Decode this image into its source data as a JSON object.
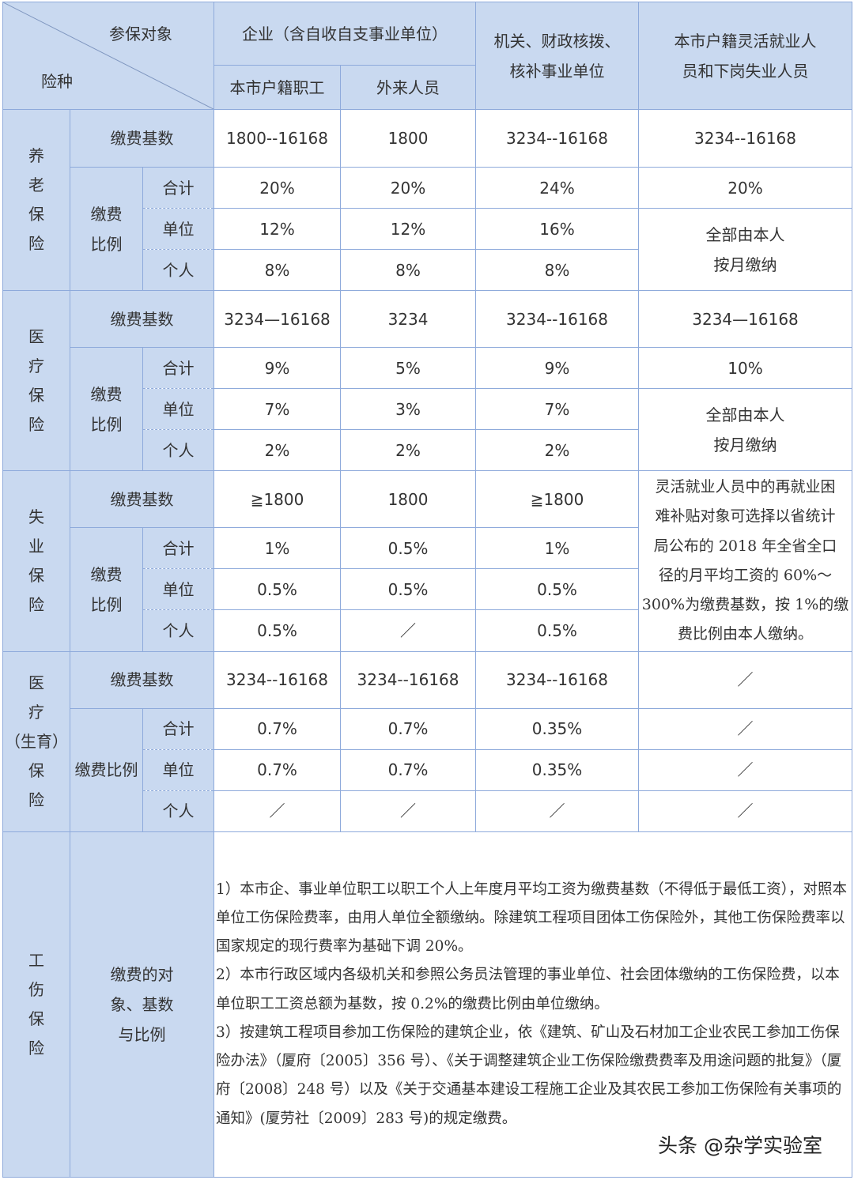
{
  "header": {
    "corner_top": "参保对象",
    "corner_bottom": "险种",
    "enterprise": "企业（含自收自支事业单位）",
    "local_staff": "本市户籍职工",
    "migrant": "外来人员",
    "government": "机关、财政核拨、\n核补事业单位",
    "flexible": "本市户籍灵活就业人\n员和下岗失业人员"
  },
  "labels": {
    "base": "缴费基数",
    "ratio": "缴费\n比例",
    "ratio_inline": "缴费比例",
    "total": "合计",
    "employer": "单位",
    "personal": "个人",
    "slash": "／"
  },
  "pension": {
    "name": "养\n老\n保\n险",
    "base": [
      "1800--16168",
      "1800",
      "3234--16168",
      "3234--16168"
    ],
    "total": [
      "20%",
      "20%",
      "24%",
      "20%"
    ],
    "employer": [
      "12%",
      "12%",
      "16%"
    ],
    "personal": [
      "8%",
      "8%",
      "8%"
    ],
    "flex_note": "全部由本人\n按月缴纳"
  },
  "medical": {
    "name": "医\n疗\n保\n险",
    "base": [
      "3234—16168",
      "3234",
      "3234--16168",
      "3234—16168"
    ],
    "total": [
      "9%",
      "5%",
      "9%",
      "10%"
    ],
    "employer": [
      "7%",
      "3%",
      "7%"
    ],
    "personal": [
      "2%",
      "2%",
      "2%"
    ],
    "flex_note": "全部由本人\n按月缴纳"
  },
  "unemployment": {
    "name": "失\n业\n保\n险",
    "base": [
      "≧1800",
      "1800",
      "≧1800"
    ],
    "total": [
      "1%",
      "0.5%",
      "1%"
    ],
    "employer": [
      "0.5%",
      "0.5%",
      "0.5%"
    ],
    "personal": [
      "0.5%",
      "／",
      "0.5%"
    ],
    "flex_note": "灵活就业人员中的再就业困\n难补贴对象可选择以省统计\n局公布的 2018 年全省全口\n径的月平均工资的 60%～\n300%为缴费基数，按 1%的缴\n费比例由本人缴纳。"
  },
  "maternity": {
    "name": "医\n疗\n（生育）\n保\n险",
    "base": [
      "3234--16168",
      "3234--16168",
      "3234--16168",
      "／"
    ],
    "total": [
      "0.7%",
      "0.7%",
      "0.35%",
      "／"
    ],
    "employer": [
      "0.7%",
      "0.7%",
      "0.35%",
      "／"
    ],
    "personal": [
      "／",
      "／",
      "／",
      "／"
    ]
  },
  "injury": {
    "name": "工\n伤\n保\n险",
    "label": "缴费的对\n象、基数\n与比例",
    "notes": [
      "1）本市企、事业单位职工以职工个人上年度月平均工资为缴费基数（不得低于最低工资），对照本单位工伤保险费率，由用人单位全额缴纳。除建筑工程项目团体工伤保险外，其他工伤保险费率以国家规定的现行费率为基础下调 20%。",
      "2）本市行政区域内各级机关和参照公务员法管理的事业单位、社会团体缴纳的工伤保险费，以本单位职工工资总额为基数，按 0.2%的缴费比例由单位缴纳。",
      "3）按建筑工程项目参加工伤保险的建筑企业，依《建筑、矿山及石材加工企业农民工参加工伤保险办法》（厦府〔2005〕356 号）、《关于调整建筑企业工伤保险缴费费率及用途问题的批复》（厦府〔2008〕248 号）以及《关于交通基本建设工程施工企业及其农民工参加工伤保险有关事项的通知》(厦劳社〔2009〕283 号)的规定缴费。"
    ]
  },
  "watermark": "头条 @杂学实验室",
  "colors": {
    "header_bg": "#c9d9f0",
    "border": "#8eaadb"
  }
}
